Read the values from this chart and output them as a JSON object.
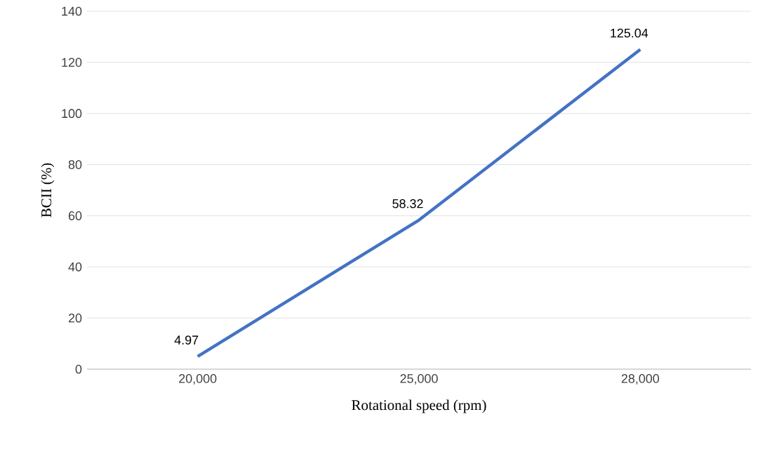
{
  "chart_data": {
    "type": "line",
    "xlabel": "Rotational speed (rpm)",
    "ylabel": "BCII  (%)",
    "categories": [
      "20,000",
      "25,000",
      "28,000"
    ],
    "values": [
      4.97,
      58.32,
      125.04
    ],
    "color": "#4472c4",
    "ylim": [
      0,
      140
    ],
    "yticks": [
      0,
      20,
      40,
      60,
      80,
      100,
      120,
      140
    ],
    "grid": "y",
    "data_labels": true
  }
}
